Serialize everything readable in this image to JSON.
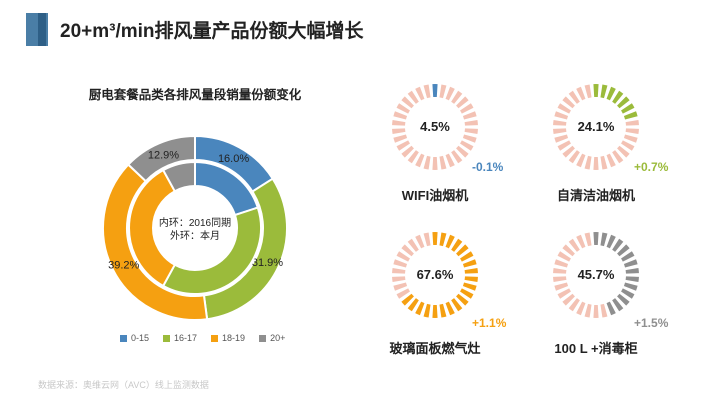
{
  "header": {
    "title": "20+m³/min排风量产品份额大幅增长"
  },
  "chart_data": [
    {
      "type": "donut",
      "title": "厨电套餐品类各排风量段销量份额变化",
      "center_text": [
        "内环：2016同期",
        "外环：本月"
      ],
      "categories": [
        "0-15",
        "16-17",
        "18-19",
        "20+"
      ],
      "series": [
        {
          "name": "外环：本月",
          "values": [
            16.0,
            31.9,
            39.2,
            12.9
          ]
        },
        {
          "name": "内环：2016同期",
          "values": [
            20.0,
            38.0,
            34.0,
            8.0
          ]
        }
      ],
      "data_labels": [
        "16.0%",
        "31.9%",
        "39.2%",
        "12.9%"
      ],
      "colors": [
        "#4a86bd",
        "#9bbb3b",
        "#f5a011",
        "#8f8f8f"
      ]
    },
    {
      "type": "gauge",
      "items": [
        {
          "value_label": "4.5%",
          "value": 4.5,
          "delta": "-0.1%",
          "label": "WIFI油烟机",
          "color": "#4a86bd",
          "delta_color": "#4a86bd"
        },
        {
          "value_label": "24.1%",
          "value": 24.1,
          "delta": "+0.7%",
          "label": "自清洁油烟机",
          "color": "#9bbb3b",
          "delta_color": "#9bbb3b"
        },
        {
          "value_label": "67.6%",
          "value": 67.6,
          "delta": "+1.1%",
          "label": "玻璃面板燃气灶",
          "color": "#f5a011",
          "delta_color": "#f5a011"
        },
        {
          "value_label": "45.7%",
          "value": 45.7,
          "delta": "+1.5%",
          "label": "100 L +消毒柜",
          "color": "#8f8f8f",
          "delta_color": "#8f8f8f"
        }
      ],
      "track_color": "#f3c2b4"
    }
  ],
  "source": "数据来源：奥维云网（AVC）线上监测数据"
}
